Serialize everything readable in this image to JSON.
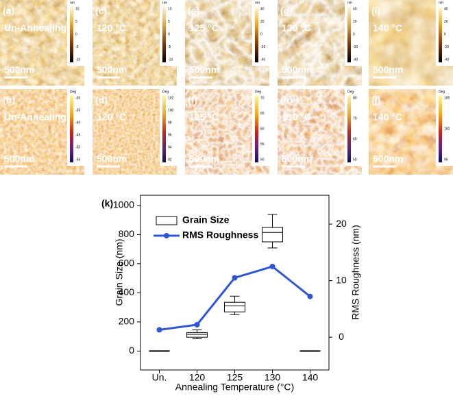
{
  "panels": [
    {
      "label": "(a)",
      "text": "Un-Annealing",
      "scale": "500nm",
      "unit": "nm",
      "ticks": [
        10,
        5,
        0,
        -5,
        -10
      ]
    },
    {
      "label": "(c)",
      "text": "120 °C",
      "scale": "500nm",
      "unit": "nm",
      "ticks": [
        10,
        5,
        0,
        -5,
        -10
      ]
    },
    {
      "label": "(e)",
      "text": "125 °C",
      "scale": "500nm",
      "unit": "nm",
      "ticks": [
        40,
        20,
        0,
        -20,
        -40
      ]
    },
    {
      "label": "(g)",
      "text": "130 °C",
      "scale": "500nm",
      "unit": "nm",
      "ticks": [
        40,
        20,
        0,
        -20,
        -40
      ]
    },
    {
      "label": "(i)",
      "text": "140 °C",
      "scale": "500nm",
      "unit": "nm",
      "ticks": [
        40,
        20,
        0,
        -20,
        -40
      ]
    },
    {
      "label": "(b)",
      "text": "Un-Annealing",
      "scale": "500nm",
      "unit": "Deg",
      "ticks": [
        -30,
        -35,
        -40,
        -45,
        -50,
        -55
      ]
    },
    {
      "label": "(d)",
      "text": "120 °C",
      "scale": "500nm",
      "unit": "Deg",
      "ticks": [
        102,
        100,
        98,
        96,
        94,
        92
      ]
    },
    {
      "label": "(f)",
      "text": "125 °C",
      "scale": "500nm",
      "unit": "Deg",
      "ticks": [
        70,
        65,
        60,
        55,
        50
      ]
    },
    {
      "label": "(h)",
      "text": "130 °C",
      "scale": "500nm",
      "unit": "Deg",
      "ticks": [
        80,
        70,
        60,
        50
      ]
    },
    {
      "label": "(j)",
      "text": "140 °C",
      "scale": "500nm",
      "unit": "Deg",
      "ticks": [
        105,
        100,
        95
      ]
    }
  ],
  "chart_data": {
    "type": "box",
    "title": "(k)",
    "categories": [
      "Un.",
      "120",
      "125",
      "130",
      "140"
    ],
    "xlabel": "Annealing Temperature (°C)",
    "ylabel": "Grain Size (nm)",
    "y2label": "RMS Roughness (nm)",
    "ylim": [
      -130,
      1070
    ],
    "yticks": [
      0,
      200,
      400,
      600,
      800,
      1000
    ],
    "y2lim": [
      -5.8,
      25.1
    ],
    "y2ticks": [
      0,
      10,
      20
    ],
    "series": [
      {
        "name": "Grain Size",
        "type": "box",
        "color": "#000000",
        "low": [
          0,
          85,
          250,
          708,
          0
        ],
        "q1": [
          0,
          95,
          269,
          750,
          0
        ],
        "median": [
          0,
          115,
          310,
          815,
          0
        ],
        "q3": [
          0,
          127,
          335,
          849,
          0
        ],
        "high": [
          0,
          146,
          377,
          939,
          0
        ]
      },
      {
        "name": "RMS Roughness",
        "type": "line",
        "axis": "y2",
        "color": "#2f55d4",
        "values": [
          1.3,
          2.2,
          10.5,
          12.5,
          7.2
        ]
      }
    ]
  }
}
